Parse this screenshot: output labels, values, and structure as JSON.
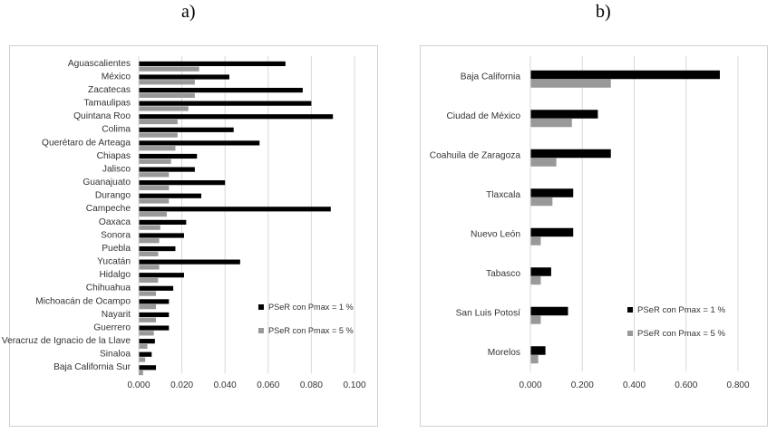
{
  "chart_data": [
    {
      "type": "bar",
      "orientation": "horizontal",
      "panel_label": "a)",
      "categories": [
        "Aguascalientes",
        "México",
        "Zacatecas",
        "Tamaulipas",
        "Quintana Roo",
        "Colima",
        "Querétaro de Arteaga",
        "Chiapas",
        "Jalisco",
        "Guanajuato",
        "Durango",
        "Campeche",
        "Oaxaca",
        "Sonora",
        "Puebla",
        "Yucatán",
        "Hidalgo",
        "Chihuahua",
        "Michoacán de Ocampo",
        "Nayarit",
        "Guerrero",
        "Veracruz de Ignacio de la Llave",
        "Sinaloa",
        "Baja California Sur"
      ],
      "series": [
        {
          "name": "PSeR con Pmax = 1 %",
          "color": "#000000",
          "values": [
            0.068,
            0.042,
            0.076,
            0.08,
            0.09,
            0.044,
            0.056,
            0.027,
            0.026,
            0.04,
            0.029,
            0.089,
            0.022,
            0.021,
            0.017,
            0.047,
            0.021,
            0.016,
            0.014,
            0.014,
            0.014,
            0.0075,
            0.006,
            0.008
          ]
        },
        {
          "name": "PSeR con Pmax = 5 %",
          "color": "#999999",
          "values": [
            0.028,
            0.026,
            0.026,
            0.023,
            0.018,
            0.018,
            0.017,
            0.015,
            0.014,
            0.014,
            0.014,
            0.013,
            0.01,
            0.0095,
            0.009,
            0.0095,
            0.009,
            0.008,
            0.008,
            0.008,
            0.007,
            0.004,
            0.003,
            0.002
          ]
        }
      ],
      "xlim": [
        0,
        0.1
      ],
      "xticks": [
        "0.000",
        "0.020",
        "0.040",
        "0.060",
        "0.080",
        "0.100"
      ],
      "legend_position": "bottom-right",
      "grid": true
    },
    {
      "type": "bar",
      "orientation": "horizontal",
      "panel_label": "b)",
      "categories": [
        "Baja California",
        "Ciudad de México",
        "Coahuila de Zaragoza",
        "Tlaxcala",
        "Nuevo León",
        "Tabasco",
        "San Luis Potosí",
        "Morelos"
      ],
      "series": [
        {
          "name": "PSeR con Pmax = 1 %",
          "color": "#000000",
          "values": [
            0.73,
            0.26,
            0.31,
            0.165,
            0.165,
            0.08,
            0.145,
            0.058
          ]
        },
        {
          "name": "PSeR con Pmax = 5 %",
          "color": "#999999",
          "values": [
            0.31,
            0.16,
            0.1,
            0.085,
            0.04,
            0.04,
            0.04,
            0.03
          ]
        }
      ],
      "xlim": [
        0,
        0.8
      ],
      "xticks": [
        "0.000",
        "0.200",
        "0.400",
        "0.600",
        "0.800"
      ],
      "legend_position": "bottom-right",
      "grid": true
    }
  ]
}
